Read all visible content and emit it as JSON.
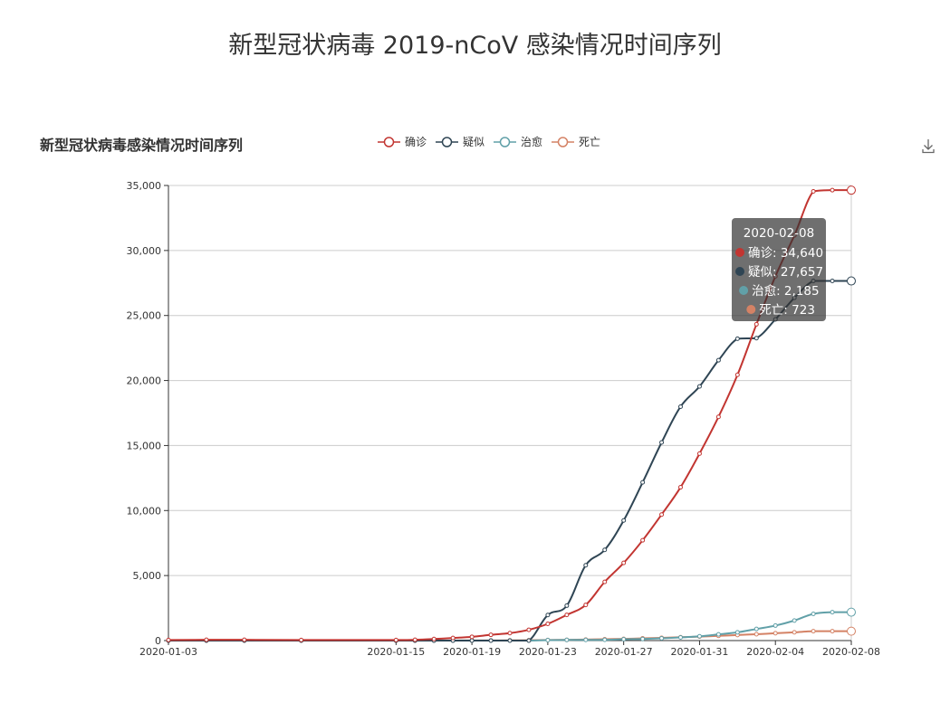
{
  "page": {
    "title": "新型冠状病毒 2019-nCoV 感染情况时间序列"
  },
  "toolbar": {
    "download_icon": "download-icon"
  },
  "chart_data": {
    "type": "line",
    "title": "新型冠状病毒感染情况时间序列",
    "legend_position": "top-center",
    "grid": true,
    "x_tick_labels": [
      "2020-01-03",
      "2020-01-15",
      "2020-01-19",
      "2020-01-23",
      "2020-01-27",
      "2020-01-31",
      "2020-02-04",
      "2020-02-08"
    ],
    "y_tick_labels": [
      "0",
      "5,000",
      "10,000",
      "15,000",
      "20,000",
      "25,000",
      "30,000",
      "35,000"
    ],
    "ylim": [
      0,
      35000
    ],
    "x": [
      "2020-01-03",
      "2020-01-05",
      "2020-01-07",
      "2020-01-10",
      "2020-01-15",
      "2020-01-16",
      "2020-01-17",
      "2020-01-18",
      "2020-01-19",
      "2020-01-20",
      "2020-01-21",
      "2020-01-22",
      "2020-01-23",
      "2020-01-24",
      "2020-01-25",
      "2020-01-26",
      "2020-01-27",
      "2020-01-28",
      "2020-01-29",
      "2020-01-30",
      "2020-01-31",
      "2020-02-01",
      "2020-02-02",
      "2020-02-03",
      "2020-02-04",
      "2020-02-05",
      "2020-02-06",
      "2020-02-07",
      "2020-02-08"
    ],
    "series": [
      {
        "name": "确诊",
        "color": "#c23531",
        "values": [
          44,
          59,
          59,
          41,
          45,
          62,
          121,
          198,
          291,
          440,
          571,
          830,
          1287,
          1975,
          2744,
          4515,
          5974,
          7711,
          9692,
          11791,
          14380,
          17205,
          20438,
          24324,
          28018,
          31161,
          34546,
          34640,
          34640
        ]
      },
      {
        "name": "疑似",
        "color": "#2f4554",
        "values": [
          0,
          0,
          0,
          0,
          0,
          0,
          0,
          0,
          0,
          0,
          0,
          0,
          1965,
          2684,
          5794,
          6973,
          9239,
          12167,
          15238,
          17988,
          19544,
          21558,
          23214,
          23260,
          24702,
          26359,
          27657,
          27657,
          27657
        ]
      },
      {
        "name": "治愈",
        "color": "#61a0a8",
        "values": [
          0,
          0,
          0,
          0,
          0,
          0,
          0,
          0,
          0,
          0,
          0,
          0,
          38,
          49,
          51,
          60,
          103,
          124,
          171,
          243,
          328,
          475,
          632,
          892,
          1153,
          1540,
          2050,
          2185,
          2185
        ]
      },
      {
        "name": "死亡",
        "color": "#d48265",
        "values": [
          0,
          0,
          0,
          1,
          2,
          2,
          3,
          4,
          6,
          9,
          17,
          25,
          41,
          56,
          80,
          106,
          132,
          170,
          213,
          259,
          304,
          361,
          425,
          490,
          563,
          636,
          722,
          723,
          723
        ]
      }
    ],
    "tooltip": {
      "date": "2020-02-08",
      "rows": [
        {
          "label": "确诊: 34,640",
          "color": "#c23531"
        },
        {
          "label": "疑似: 27,657",
          "color": "#2f4554"
        },
        {
          "label": "治愈: 2,185",
          "color": "#61a0a8"
        },
        {
          "label": "死亡: 723",
          "color": "#d48265"
        }
      ]
    }
  }
}
